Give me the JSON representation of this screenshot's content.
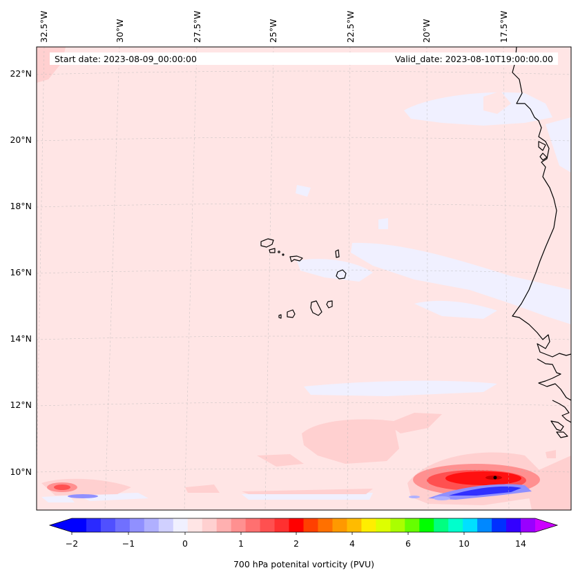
{
  "map": {
    "start_date_label": "Start date: 2023-08-09_00:00:00",
    "valid_date_label": "Valid_date: 2023-08-10T19:00:00.00",
    "lon_labels": [
      "32.5°W",
      "30°W",
      "27.5°W",
      "25°W",
      "22.5°W",
      "20°W",
      "17.5°W"
    ],
    "lat_labels": [
      "22°N",
      "20°N",
      "18°N",
      "16°N",
      "14°N",
      "12°N",
      "10°N"
    ],
    "background_color": "#ffe5e5",
    "coastline_color": "#000000",
    "gridlines": true
  },
  "colorbar": {
    "label": "700 hPa potenital vorticity (PVU)",
    "tick_labels": [
      "−2",
      "−1",
      "0",
      "1",
      "2",
      "4",
      "6",
      "10",
      "14"
    ],
    "colors": [
      "#0000ff",
      "#2a2aff",
      "#5050ff",
      "#7070ff",
      "#9090ff",
      "#b0b0ff",
      "#d0d0ff",
      "#f0f0ff",
      "#ffe5e5",
      "#ffd0d0",
      "#ffb0b0",
      "#ff9090",
      "#ff7070",
      "#ff5050",
      "#ff3030",
      "#ff0000",
      "#ff4000",
      "#ff7000",
      "#ff9900",
      "#ffbb00",
      "#ffee00",
      "#ddff00",
      "#aaff00",
      "#66ff00",
      "#00ff00",
      "#00ff80",
      "#00ffcc",
      "#00e0ff",
      "#0088ff",
      "#0030ff",
      "#3300ff",
      "#9900ff"
    ],
    "extend_low_color": "#0000ff",
    "extend_high_color": "#cc00ff"
  }
}
